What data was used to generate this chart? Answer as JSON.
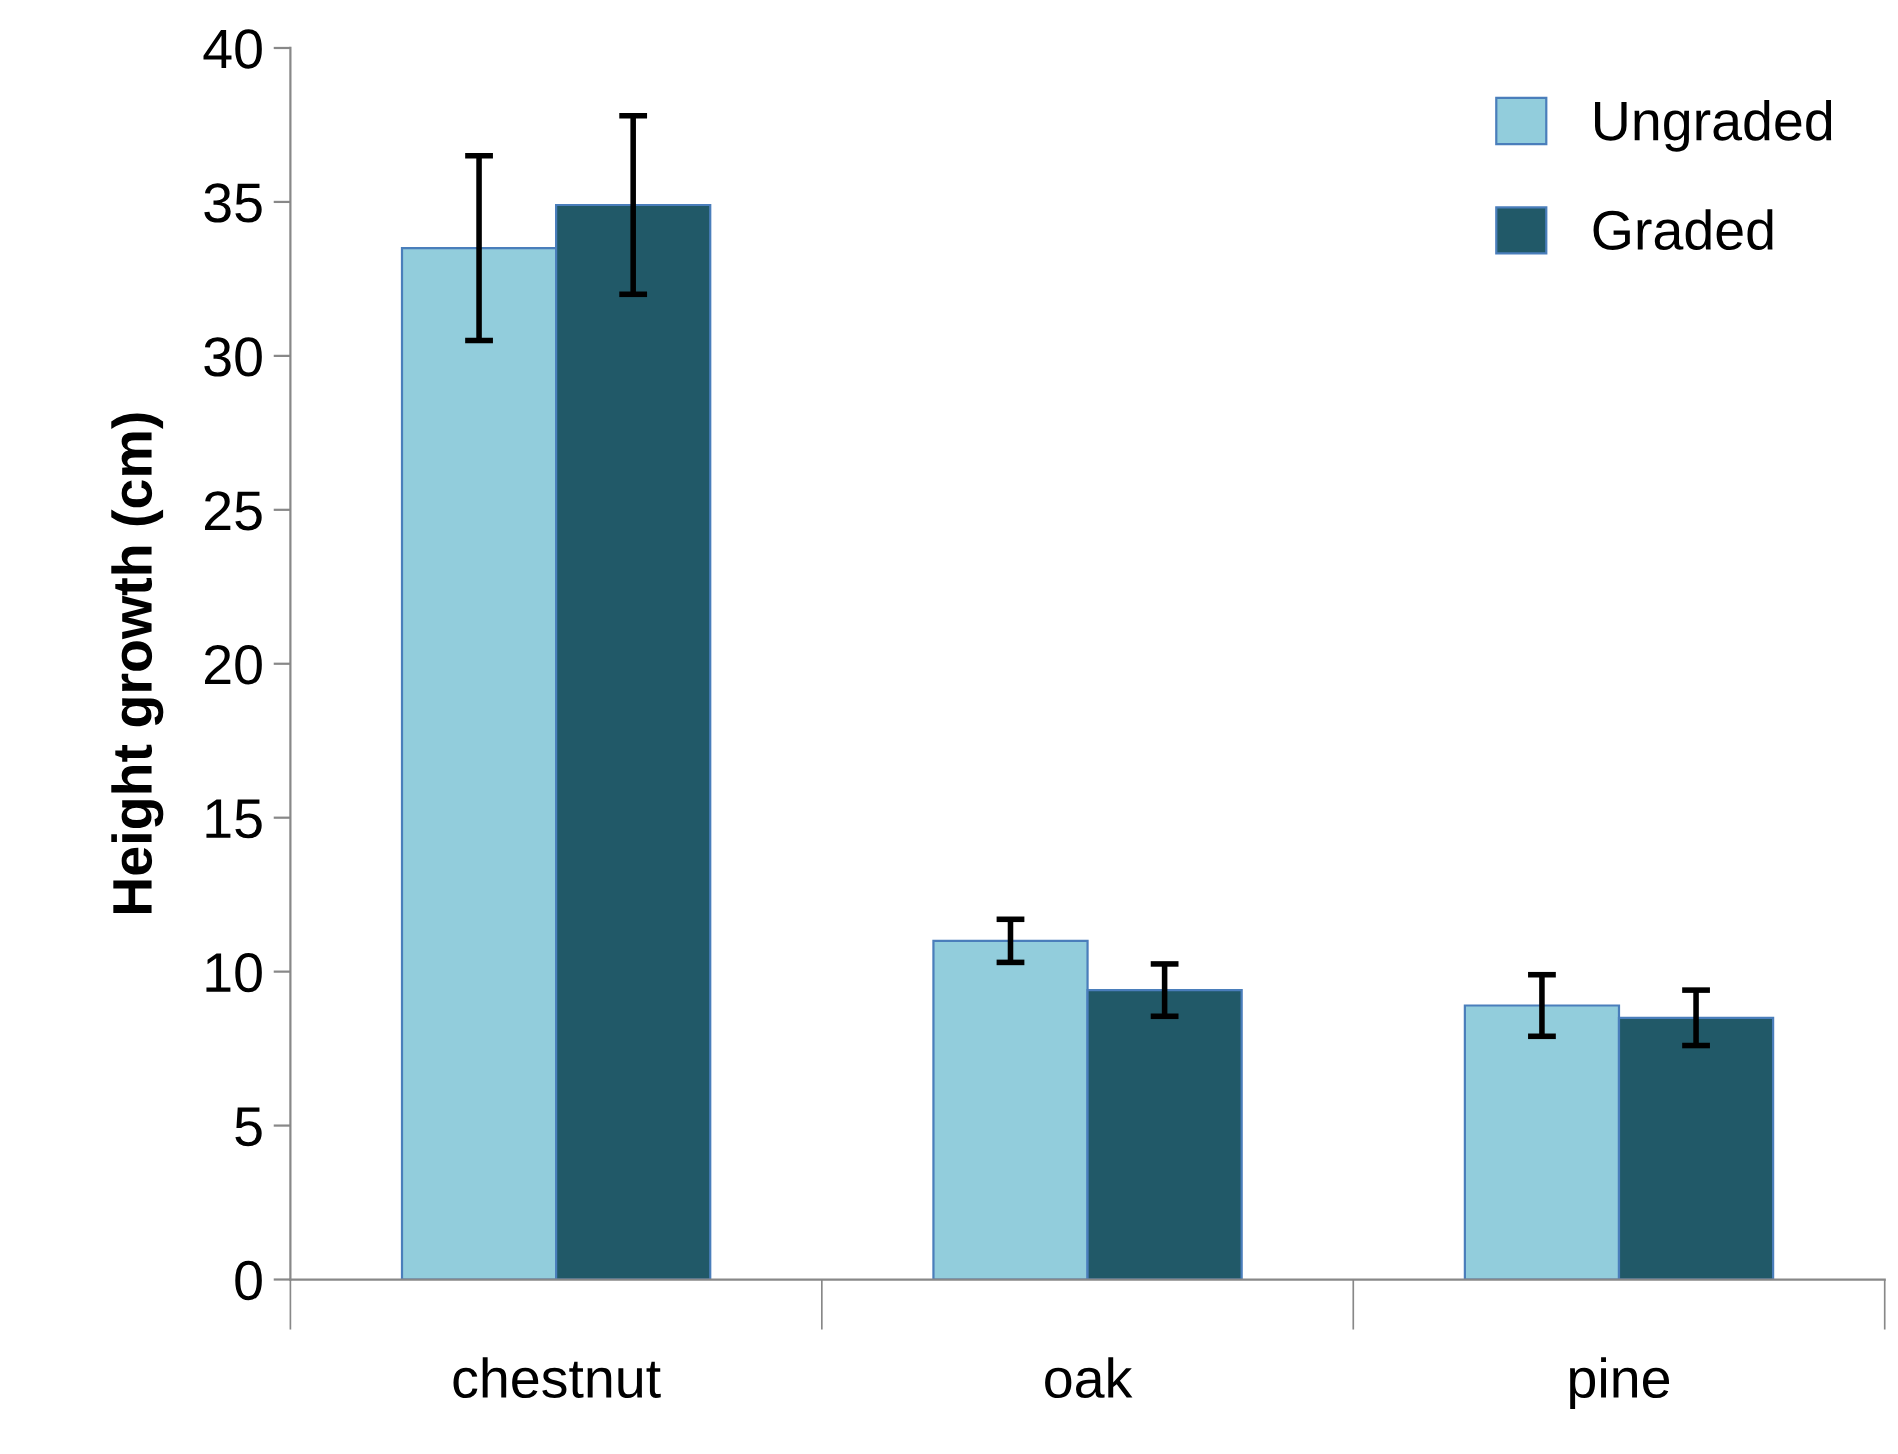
{
  "chart_data": {
    "type": "bar",
    "ylabel": "Height growth (cm)",
    "categories": [
      "chestnut",
      "oak",
      "pine"
    ],
    "series": [
      {
        "name": "Ungraded",
        "color": "#92cddc",
        "values": [
          33.5,
          11.0,
          8.9
        ],
        "errors": [
          3.0,
          0.7,
          1.0
        ]
      },
      {
        "name": "Graded",
        "color": "#215968",
        "values": [
          34.9,
          9.4,
          8.5
        ],
        "errors": [
          2.9,
          0.85,
          0.9
        ]
      }
    ],
    "ylim": [
      0,
      40
    ],
    "yticks": [
      0,
      5,
      10,
      15,
      20,
      25,
      30,
      35,
      40
    ],
    "grid": false,
    "legend": "top right"
  }
}
